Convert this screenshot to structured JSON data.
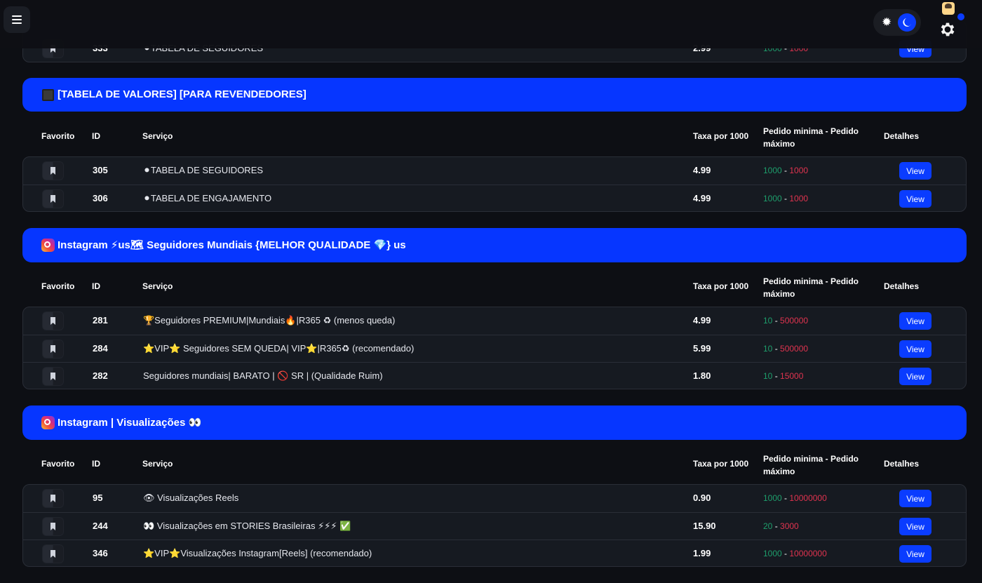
{
  "header": {
    "menu_icon": "hamburger-icon",
    "theme_icon_sun": "sun-icon",
    "theme_icon_moon": "moon-icon",
    "settings_icon": "gear-icon",
    "avatar_icon": "avatar-icon"
  },
  "columns": {
    "favorite": "Favorito",
    "id": "ID",
    "service": "Serviço",
    "rate": "Taxa por 1000",
    "minmax": "Pedido minima - Pedido máximo",
    "details": "Detalhes"
  },
  "view_label": "View",
  "top_partial_row": {
    "id": "333",
    "service": "⚫TABELA DE SEGUIDORES",
    "rate": "2.99",
    "min": "1000",
    "max": "1000"
  },
  "categories": [
    {
      "title": "[TABELA DE VALORES] [PARA REVENDEDORES]",
      "icon": "black-square-icon",
      "rows": [
        {
          "id": "305",
          "service": "⚫TABELA DE SEGUIDORES",
          "rate": "4.99",
          "min": "1000",
          "max": "1000"
        },
        {
          "id": "306",
          "service": "⚫TABELA DE ENGAJAMENTO",
          "rate": "4.99",
          "min": "1000",
          "max": "1000"
        }
      ]
    },
    {
      "title": "Instagram ⚡us🗺 Seguidores Mundiais {MELHOR QUALIDADE 💎} us",
      "icon": "instagram-icon",
      "rows": [
        {
          "id": "281",
          "service": "🏆Seguidores PREMIUM|Mundiais🔥|R365 ♻ (menos queda)",
          "rate": "4.99",
          "min": "10",
          "max": "500000"
        },
        {
          "id": "284",
          "service": "⭐VIP⭐ Seguidores SEM QUEDA| VIP⭐|R365♻ (recomendado)",
          "rate": "5.99",
          "min": "10",
          "max": "500000"
        },
        {
          "id": "282",
          "service": "Seguidores mundiais| BARATO | 🚫 SR | (Qualidade Ruim)",
          "rate": "1.80",
          "min": "10",
          "max": "15000"
        }
      ]
    },
    {
      "title": "Instagram | Visualizações 👀",
      "icon": "instagram-icon",
      "rows": [
        {
          "id": "95",
          "service": "👁 Visualizações Reels",
          "rate": "0.90",
          "min": "1000",
          "max": "10000000"
        },
        {
          "id": "244",
          "service": "👀 Visualizações em STORIES Brasileiras ⚡⚡⚡ ✅",
          "rate": "15.90",
          "min": "20",
          "max": "3000"
        },
        {
          "id": "346",
          "service": "⭐VIP⭐Visualizações Instagram[Reels] (recomendado)",
          "rate": "1.99",
          "min": "1000",
          "max": "10000000"
        }
      ]
    }
  ]
}
